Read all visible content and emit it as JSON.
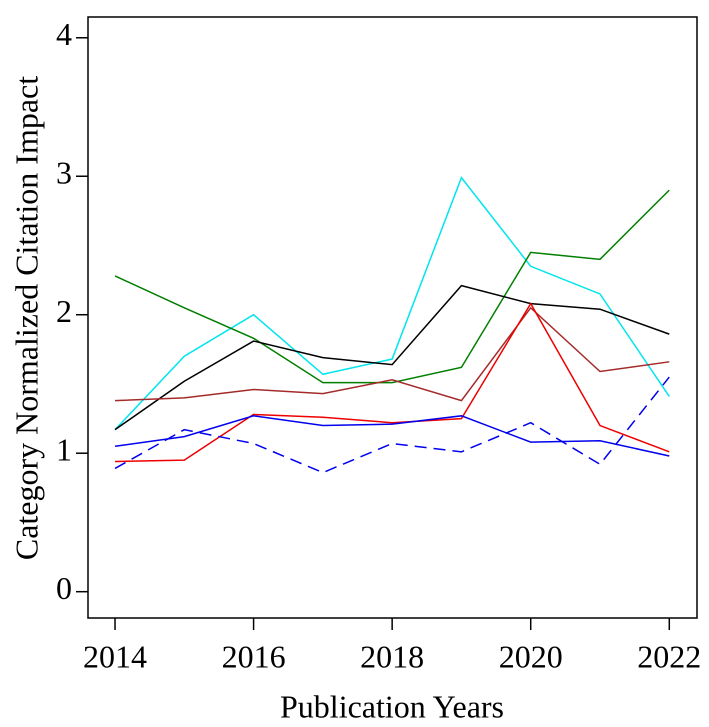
{
  "chart_data": {
    "type": "line",
    "xlabel": "Publication Years",
    "ylabel": "Category Normalized Citation Impact",
    "x": [
      2014,
      2015,
      2016,
      2017,
      2018,
      2019,
      2020,
      2021,
      2022
    ],
    "xlim": [
      2013.61,
      2022.4
    ],
    "xticks": [
      2014,
      2016,
      2018,
      2020,
      2022
    ],
    "ylim": [
      -0.19,
      4.15
    ],
    "yticks": [
      0,
      1,
      2,
      3,
      4
    ],
    "series": [
      {
        "color": "#00e5ee",
        "values": [
          1.17,
          1.7,
          2.0,
          1.57,
          1.68,
          2.99,
          2.35,
          2.15,
          1.41
        ]
      },
      {
        "color": "#007f00",
        "values": [
          2.28,
          2.05,
          1.83,
          1.51,
          1.51,
          1.62,
          2.45,
          2.4,
          2.9
        ]
      },
      {
        "color": "#000000",
        "values": [
          1.17,
          1.52,
          1.81,
          1.69,
          1.64,
          2.21,
          2.08,
          2.04,
          1.86
        ]
      },
      {
        "color": "#a52a2a",
        "values": [
          1.38,
          1.4,
          1.46,
          1.43,
          1.53,
          1.38,
          2.05,
          1.59,
          1.66
        ]
      },
      {
        "color": "#ee0000",
        "values": [
          0.94,
          0.95,
          1.28,
          1.26,
          1.22,
          1.25,
          2.08,
          1.2,
          1.01
        ]
      },
      {
        "color": "#0000ee",
        "values": [
          1.05,
          1.12,
          1.27,
          1.2,
          1.21,
          1.27,
          1.08,
          1.09,
          0.98
        ]
      },
      {
        "color": "#0000ee",
        "dash": "dashed",
        "values": [
          0.89,
          1.17,
          1.07,
          0.86,
          1.07,
          1.01,
          1.22,
          0.92,
          1.55
        ]
      }
    ]
  }
}
